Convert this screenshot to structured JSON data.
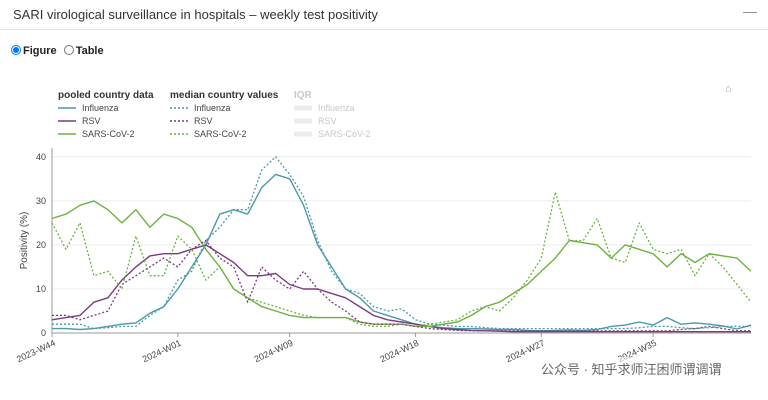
{
  "panel": {
    "title": "SARI virological surveillance in hospitals – weekly test positivity",
    "minimize_icon": "minimize-icon"
  },
  "view_toggle": {
    "options": [
      "Figure",
      "Table"
    ],
    "selected": "Figure"
  },
  "watermark": "公众号 · 知乎求师汪困师谓调谓",
  "chart_data": {
    "type": "line",
    "title": "",
    "ylabel": "Positivity (%)",
    "xlabel": "",
    "ylim": [
      0,
      42
    ],
    "yticks": [
      0,
      10,
      20,
      30,
      40
    ],
    "x_ticks": [
      {
        "label": "2023-W44",
        "index": 0
      },
      {
        "label": "2024-W01",
        "index": 9
      },
      {
        "label": "2024-W09",
        "index": 17
      },
      {
        "label": "2024-W18",
        "index": 26
      },
      {
        "label": "2024-W27",
        "index": 35
      },
      {
        "label": "2024-W35",
        "index": 43
      }
    ],
    "n_weeks": 51,
    "grid": "y",
    "legend": {
      "placement": "top-left",
      "groups": [
        {
          "title": "pooled country data",
          "items": [
            "Influenza",
            "RSV",
            "SARS-CoV-2"
          ]
        },
        {
          "title": "median country values",
          "items": [
            "Influenza",
            "RSV",
            "SARS-CoV-2"
          ]
        },
        {
          "title": "IQR",
          "items": [
            "Influenza",
            "RSV",
            "SARS-CoV-2"
          ]
        }
      ]
    },
    "colors": {
      "Influenza": "#4a9aa8",
      "RSV": "#7b3b7e",
      "SARS-CoV-2": "#6db33f",
      "IQR": "#d9d9d9"
    },
    "series": [
      {
        "name": "Influenza",
        "group": "pooled country data",
        "style": "solid",
        "values": [
          1,
          1,
          0.8,
          1,
          1.5,
          2,
          2.3,
          4.5,
          6,
          10,
          15,
          20,
          27,
          28,
          27,
          33,
          36,
          35,
          29,
          20,
          15,
          10,
          8,
          5,
          4,
          3,
          2,
          1.5,
          1.2,
          1,
          1,
          0.9,
          0.8,
          0.8,
          0.6,
          0.5,
          0.6,
          0.7,
          0.6,
          0.8,
          1.5,
          1.8,
          2.5,
          1.8,
          3.5,
          2,
          2.3,
          2,
          1.6,
          0.9,
          1.8
        ]
      },
      {
        "name": "RSV",
        "group": "pooled country data",
        "style": "solid",
        "values": [
          3,
          3.5,
          4,
          7,
          8,
          12,
          15,
          17.5,
          18,
          18,
          19,
          20,
          18,
          16,
          13,
          13,
          13.5,
          11,
          10,
          10,
          9,
          8,
          6,
          4,
          3,
          2.5,
          2,
          1.5,
          1,
          0.8,
          0.6,
          0.5,
          0.4,
          0.3,
          0.3,
          0.3,
          0.3,
          0.3,
          0.3,
          0.3,
          0.3,
          0.3,
          0.3,
          0.3,
          0.3,
          0.3,
          0.3,
          0.3,
          0.3,
          0.3,
          0.3
        ]
      },
      {
        "name": "SARS-CoV-2",
        "group": "pooled country data",
        "style": "solid",
        "values": [
          26,
          27,
          29,
          30,
          28,
          25,
          28,
          24,
          27,
          26,
          24,
          19,
          15,
          10,
          8,
          6,
          5,
          4,
          3.5,
          3.5,
          3.5,
          3.5,
          2.5,
          2,
          2,
          2,
          1.5,
          1.5,
          2,
          2.5,
          4,
          6,
          7,
          9,
          11,
          14,
          17,
          21,
          20.5,
          20,
          17,
          20,
          19,
          18,
          15,
          18,
          16,
          18,
          17.5,
          17,
          14
        ]
      },
      {
        "name": "Influenza",
        "group": "median country values",
        "style": "dotted",
        "values": [
          2,
          2,
          2,
          1,
          1.2,
          1.5,
          1.5,
          4,
          6,
          12,
          14,
          21,
          24,
          28,
          28,
          37,
          40,
          36,
          31,
          21,
          14,
          10,
          9,
          6,
          5,
          5.5,
          3,
          2,
          1.8,
          1.5,
          1.5,
          1.2,
          1,
          1,
          1,
          1,
          1,
          1,
          1,
          1,
          1,
          1,
          1.2,
          1.5,
          1.5,
          1.2,
          1,
          1.2,
          1.5,
          1.5,
          1.5
        ]
      },
      {
        "name": "RSV",
        "group": "median country values",
        "style": "dotted",
        "values": [
          4,
          4,
          3,
          4,
          5,
          11,
          13,
          15,
          17,
          15,
          19,
          21,
          17,
          15,
          7,
          15,
          12,
          10,
          14,
          10,
          7,
          5,
          2.5,
          2,
          2,
          2,
          1.5,
          1,
          0.8,
          0.6,
          0.5,
          0.5,
          0.5,
          0.5,
          0.5,
          0.5,
          0.5,
          0.5,
          0.5,
          0.5,
          0.5,
          0.5,
          0.5,
          0.5,
          0.5,
          0.8,
          1,
          1.5,
          1,
          0.5,
          0.5
        ]
      },
      {
        "name": "SARS-CoV-2",
        "group": "median country values",
        "style": "dotted",
        "values": [
          25,
          19,
          25,
          13,
          14,
          10,
          22,
          13,
          13,
          22,
          19,
          12,
          15,
          10,
          8,
          7,
          6,
          5,
          4,
          3.5,
          3.5,
          3.5,
          2,
          1.5,
          1.5,
          2,
          1.5,
          2,
          2.5,
          3,
          5,
          6,
          5,
          8,
          12,
          17,
          32,
          21,
          21,
          26,
          17,
          16,
          25,
          19,
          18,
          19,
          13,
          18,
          15,
          11,
          7
        ]
      }
    ]
  }
}
